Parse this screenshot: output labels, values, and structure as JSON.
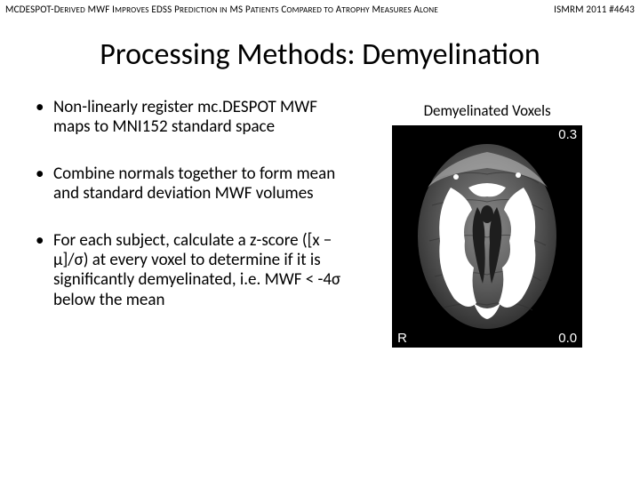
{
  "header": {
    "left_html": "MCDESPOT-D<small>ERIVED</small> MWF I<small>MPROVES</small> EDSS P<small>REDICTION IN</small> MS P<small>ATIENTS</small> C<small>OMPARED TO</small> A<small>TROPHY</small> M<small>EASURES</small> A<small>LONE</small>",
    "right": "ISMRM 2011 #4643"
  },
  "title": "Processing Methods: Demyelination",
  "bullets": [
    "Non-linearly register mc.DESPOT MWF maps to MNI152 standard space",
    "Combine normals together to form mean and standard deviation MWF volumes",
    "For each subject, calculate a z-score ([x − μ]/σ) at every voxel to determine if it is significantly demyelinated, i.e. MWF < -4σ below the mean"
  ],
  "figure": {
    "caption": "Demyelinated Voxels",
    "scale_top": "0.3",
    "scale_bottom": "0.0",
    "side_label": "R",
    "colors": {
      "background": "#000000",
      "brain_gray_dark": "#3a3a3a",
      "brain_gray_mid": "#6f6f6f",
      "brain_gray_light": "#b5b5b5",
      "overlay_white": "#ffffff",
      "overlay_edge": "#e8e8e8",
      "text": "#ffffff"
    }
  }
}
